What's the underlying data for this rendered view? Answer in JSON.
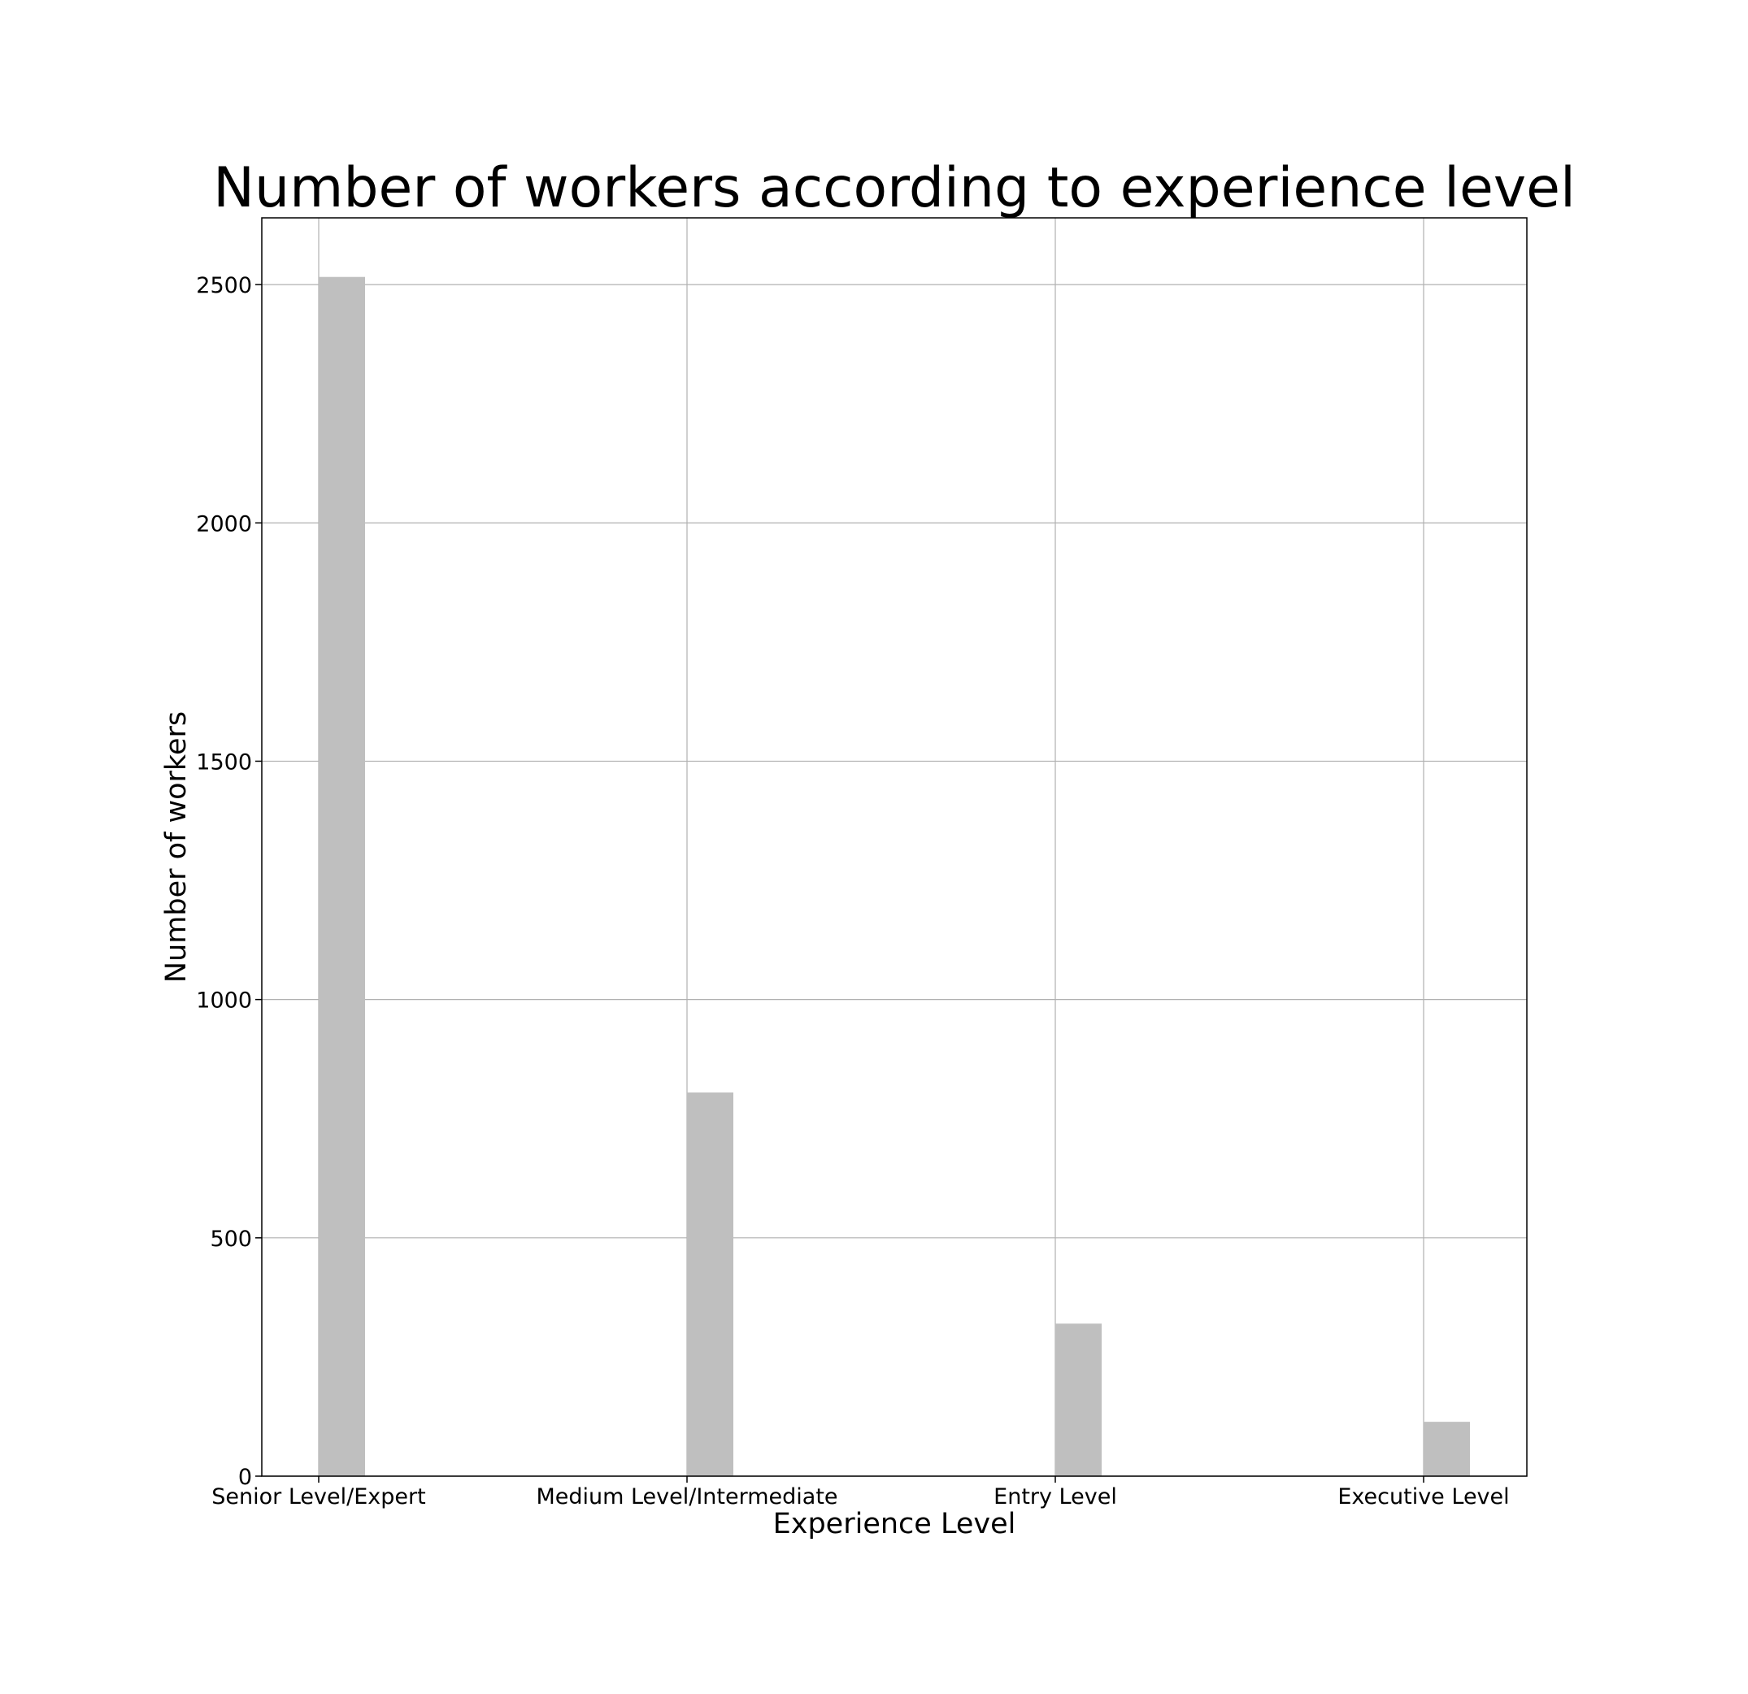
{
  "chart_data": {
    "type": "bar",
    "title": "Number of workers according to experience level",
    "xlabel": "Experience Level",
    "ylabel": "Number of workers",
    "categories": [
      "Senior Level/Expert",
      "Medium Level/Intermediate",
      "Entry Level",
      "Executive Level"
    ],
    "values": [
      2516,
      805,
      320,
      114
    ],
    "ylim": [
      0,
      2640
    ],
    "yticks": [
      0,
      500,
      1000,
      1500,
      2000,
      2500
    ],
    "grid": true,
    "bar_color": "#bfbfbf",
    "grid_color": "#b0b0b0"
  }
}
